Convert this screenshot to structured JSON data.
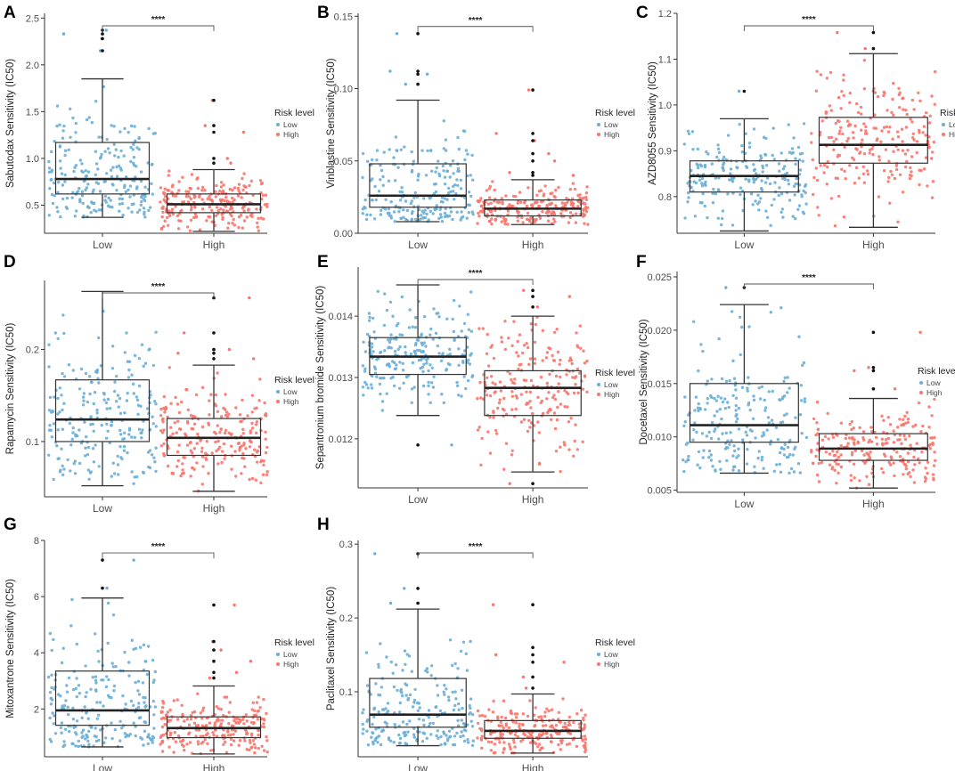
{
  "legend": {
    "title": "Risk level",
    "items": [
      "Low",
      "High"
    ]
  },
  "colors": {
    "low": "#6baed6",
    "high": "#f8766d",
    "box": "#333333",
    "outlier": "#111111"
  },
  "chart_data": [
    {
      "panel": "A",
      "type": "box",
      "ylabel": "Sabutodax  Sensitivity (IC50)",
      "categories": [
        "Low",
        "High"
      ],
      "ylim": [
        0.2,
        2.55
      ],
      "yticks": [
        0.5,
        1.0,
        1.5,
        2.0,
        2.5
      ],
      "tick_labels": [
        "0.5",
        "1.0",
        "1.5",
        "2.0",
        "2.5"
      ],
      "significance": "****",
      "groups": [
        {
          "name": "Low",
          "min": 0.37,
          "q1": 0.62,
          "median": 0.78,
          "q3": 1.17,
          "max": 1.85,
          "outliers": [
            2.15,
            2.28,
            2.33,
            2.37
          ]
        },
        {
          "name": "High",
          "min": 0.22,
          "q1": 0.42,
          "median": 0.51,
          "q3": 0.62,
          "max": 0.88,
          "outliers": [
            0.95,
            1.0,
            1.28,
            1.35,
            1.62
          ]
        }
      ]
    },
    {
      "panel": "B",
      "type": "box",
      "ylabel": "Vinblastine Sensitivity (IC50)",
      "categories": [
        "Low",
        "High"
      ],
      "ylim": [
        0.0,
        0.152
      ],
      "yticks": [
        0.0,
        0.05,
        0.1,
        0.15
      ],
      "tick_labels": [
        "0.00",
        "0.05",
        "0.10",
        "0.15"
      ],
      "significance": "****",
      "groups": [
        {
          "name": "Low",
          "min": 0.008,
          "q1": 0.018,
          "median": 0.026,
          "q3": 0.048,
          "max": 0.092,
          "outliers": [
            0.103,
            0.11,
            0.112,
            0.138
          ]
        },
        {
          "name": "High",
          "min": 0.006,
          "q1": 0.012,
          "median": 0.017,
          "q3": 0.023,
          "max": 0.037,
          "outliers": [
            0.04,
            0.042,
            0.05,
            0.055,
            0.064,
            0.069,
            0.099
          ]
        }
      ]
    },
    {
      "panel": "C",
      "type": "box",
      "ylabel": "AZD8055 Sensitivity (IC50)",
      "categories": [
        "Low",
        "High"
      ],
      "ylim": [
        0.72,
        1.2
      ],
      "yticks": [
        0.8,
        0.9,
        1.0,
        1.1,
        1.2
      ],
      "tick_labels": [
        "0.8",
        "0.9",
        "1.0",
        "1.1",
        "1.2"
      ],
      "significance": "****",
      "groups": [
        {
          "name": "Low",
          "min": 0.725,
          "q1": 0.81,
          "median": 0.845,
          "q3": 0.878,
          "max": 0.97,
          "outliers": [
            1.03
          ]
        },
        {
          "name": "High",
          "min": 0.733,
          "q1": 0.873,
          "median": 0.913,
          "q3": 0.973,
          "max": 1.112,
          "outliers": [
            1.123,
            1.158
          ]
        }
      ]
    },
    {
      "panel": "D",
      "type": "box",
      "ylabel": "Rapamycin Sensitivity (IC50)",
      "categories": [
        "Low",
        "High"
      ],
      "ylim": [
        0.04,
        0.275
      ],
      "yticks": [
        0.1,
        0.2
      ],
      "tick_labels": [
        "0.1",
        "0.2"
      ],
      "significance": "****",
      "groups": [
        {
          "name": "Low",
          "min": 0.052,
          "q1": 0.1,
          "median": 0.124,
          "q3": 0.167,
          "max": 0.263,
          "outliers": []
        },
        {
          "name": "High",
          "min": 0.046,
          "q1": 0.085,
          "median": 0.104,
          "q3": 0.125,
          "max": 0.183,
          "outliers": [
            0.19,
            0.196,
            0.2,
            0.218,
            0.256
          ]
        }
      ]
    },
    {
      "panel": "E",
      "type": "box",
      "ylabel": "Sepantronium bromide Sensitivity (IC50)",
      "categories": [
        "Low",
        "High"
      ],
      "ylim": [
        0.0112,
        0.0148
      ],
      "yticks": [
        0.012,
        0.013,
        0.014
      ],
      "tick_labels": [
        "0.012",
        "0.013",
        "0.014"
      ],
      "significance": "****",
      "groups": [
        {
          "name": "Low",
          "min": 0.01238,
          "q1": 0.01305,
          "median": 0.01334,
          "q3": 0.01365,
          "max": 0.01451,
          "outliers": [
            0.0119
          ]
        },
        {
          "name": "High",
          "min": 0.01146,
          "q1": 0.01238,
          "median": 0.01283,
          "q3": 0.01311,
          "max": 0.014,
          "outliers": [
            0.01127,
            0.01415,
            0.01432,
            0.01442
          ]
        }
      ]
    },
    {
      "panel": "F",
      "type": "box",
      "ylabel": "Docetaxel Sensitivity (IC50)",
      "categories": [
        "Low",
        "High"
      ],
      "ylim": [
        0.0048,
        0.0255
      ],
      "yticks": [
        0.005,
        0.01,
        0.015,
        0.02,
        0.025
      ],
      "tick_labels": [
        "0.005",
        "0.010",
        "0.015",
        "0.020",
        "0.025"
      ],
      "significance": "****",
      "groups": [
        {
          "name": "Low",
          "min": 0.0066,
          "q1": 0.0095,
          "median": 0.0111,
          "q3": 0.015,
          "max": 0.0224,
          "outliers": [
            0.024
          ]
        },
        {
          "name": "High",
          "min": 0.0052,
          "q1": 0.0078,
          "median": 0.0089,
          "q3": 0.0103,
          "max": 0.0136,
          "outliers": [
            0.0145,
            0.0162,
            0.0165,
            0.0198
          ]
        }
      ]
    },
    {
      "panel": "G",
      "type": "box",
      "ylabel": "Mitoxantrone Sensitivity (IC50)",
      "categories": [
        "Low",
        "High"
      ],
      "ylim": [
        0.3,
        8.0
      ],
      "yticks": [
        2,
        4,
        6,
        8
      ],
      "tick_labels": [
        "2",
        "4",
        "6",
        "8"
      ],
      "significance": "****",
      "groups": [
        {
          "name": "Low",
          "min": 0.65,
          "q1": 1.42,
          "median": 1.95,
          "q3": 3.35,
          "max": 5.95,
          "outliers": [
            6.3,
            7.3
          ]
        },
        {
          "name": "High",
          "min": 0.4,
          "q1": 0.98,
          "median": 1.32,
          "q3": 1.72,
          "max": 2.82,
          "outliers": [
            3.1,
            3.3,
            3.7,
            4.1,
            4.4,
            5.7
          ]
        }
      ]
    },
    {
      "panel": "H",
      "type": "box",
      "ylabel": "Paclitaxel Sensitivity (IC50)",
      "categories": [
        "Low",
        "High"
      ],
      "ylim": [
        0.012,
        0.305
      ],
      "yticks": [
        0.1,
        0.2,
        0.3
      ],
      "tick_labels": [
        "0.1",
        "0.2",
        "0.3"
      ],
      "significance": "****",
      "groups": [
        {
          "name": "Low",
          "min": 0.027,
          "q1": 0.052,
          "median": 0.069,
          "q3": 0.118,
          "max": 0.212,
          "outliers": [
            0.22,
            0.24,
            0.287
          ]
        },
        {
          "name": "High",
          "min": 0.017,
          "q1": 0.037,
          "median": 0.047,
          "q3": 0.061,
          "max": 0.097,
          "outliers": [
            0.105,
            0.12,
            0.14,
            0.15,
            0.16,
            0.218
          ]
        }
      ]
    }
  ]
}
